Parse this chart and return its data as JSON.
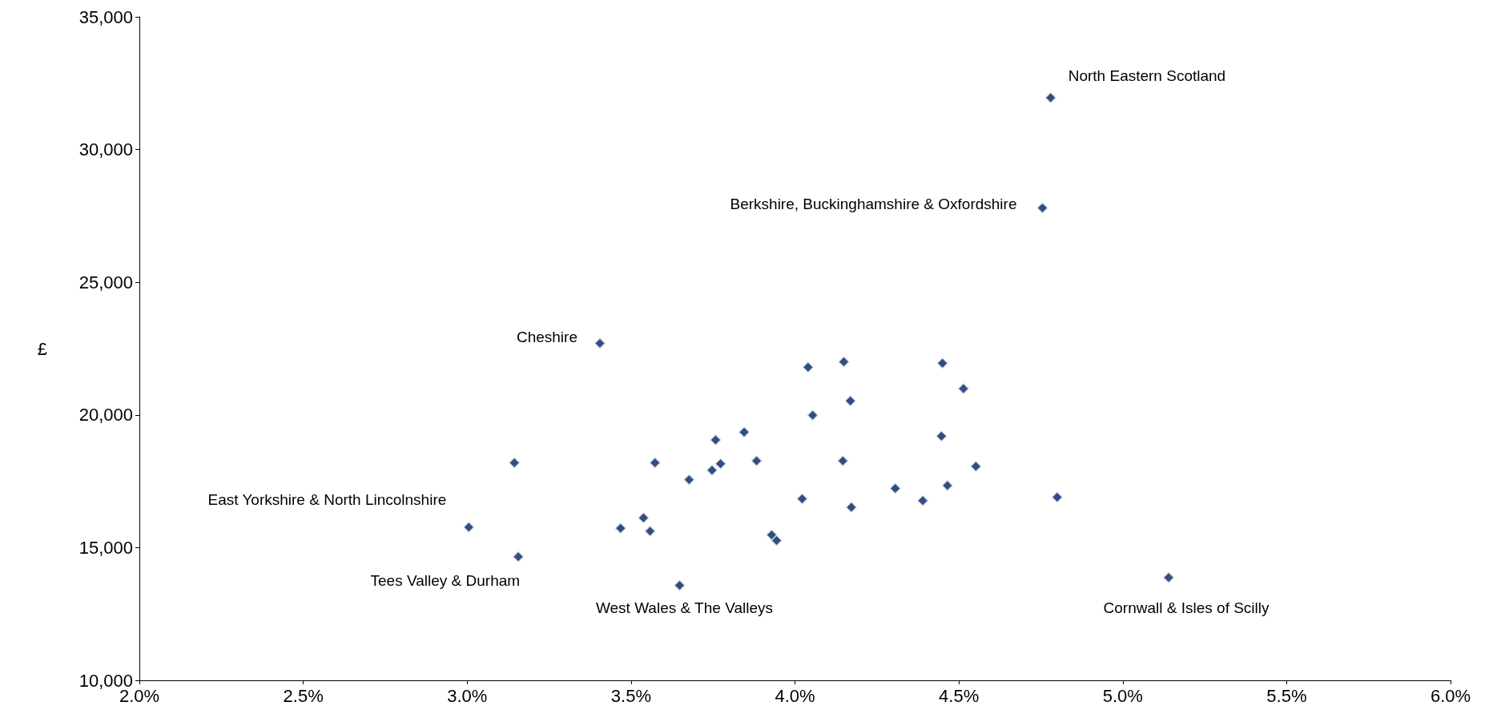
{
  "chart_data": {
    "type": "scatter",
    "ylabel": "£",
    "marker": "diamond",
    "x": [
      4.78,
      4.755,
      3.405,
      4.04,
      4.149,
      4.45,
      4.514,
      4.169,
      4.054,
      4.447,
      3.758,
      3.845,
      3.144,
      3.573,
      3.883,
      4.146,
      4.552,
      3.773,
      3.747,
      3.677,
      4.306,
      4.465,
      4.8,
      4.022,
      4.39,
      4.172,
      3.538,
      3.468,
      3.558,
      3.005,
      3.929,
      3.944,
      3.156,
      3.648,
      5.14
    ],
    "series": [
      {
        "color": "#002060",
        "values": [
          31950,
          27800,
          22700,
          21800,
          22000,
          21950,
          20990,
          20530,
          19990,
          19200,
          19060,
          19350,
          18200,
          18200,
          18270,
          18270,
          18060,
          18160,
          17920,
          17560,
          17230,
          17340,
          16900,
          16840,
          16770,
          16520,
          16120,
          15730,
          15620,
          15770,
          15480,
          15270,
          14660,
          13580,
          13870
        ]
      }
    ],
    "xlim": [
      2.0,
      6.0
    ],
    "xticks": [
      {
        "value": 2.0,
        "label": "2.0%"
      },
      {
        "value": 2.5,
        "label": "2.5%"
      },
      {
        "value": 3.0,
        "label": "3.0%"
      },
      {
        "value": 3.5,
        "label": "3.5%"
      },
      {
        "value": 4.0,
        "label": "4.0%"
      },
      {
        "value": 4.5,
        "label": "4.5%"
      },
      {
        "value": 5.0,
        "label": "5.0%"
      },
      {
        "value": 5.5,
        "label": "5.5%"
      },
      {
        "value": 6.0,
        "label": "6.0%"
      }
    ],
    "ylim": [
      10000,
      35000
    ],
    "yticks": [
      {
        "value": 10000,
        "label": "10,000"
      },
      {
        "value": 15000,
        "label": "15,000"
      },
      {
        "value": 20000,
        "label": "20,000"
      },
      {
        "value": 25000,
        "label": "25,000"
      },
      {
        "value": 30000,
        "label": "30,000"
      },
      {
        "value": 35000,
        "label": "35,000"
      }
    ],
    "annotations": [
      {
        "text": "North Eastern Scotland",
        "x": 4.78,
        "y": 31950
      },
      {
        "text": "Berkshire, Buckinghamshire & Oxfordshire",
        "x": 4.755,
        "y": 27800
      },
      {
        "text": "Cheshire",
        "x": 3.405,
        "y": 22700
      },
      {
        "text": "East Yorkshire & North Lincolnshire",
        "x": 3.005,
        "y": 15770
      },
      {
        "text": "Tees Valley & Durham",
        "x": 3.156,
        "y": 14660
      },
      {
        "text": "West Wales & The Valleys",
        "x": 3.648,
        "y": 13580
      },
      {
        "text": "Cornwall & Isles of Scilly",
        "x": 5.14,
        "y": 13870
      }
    ]
  }
}
